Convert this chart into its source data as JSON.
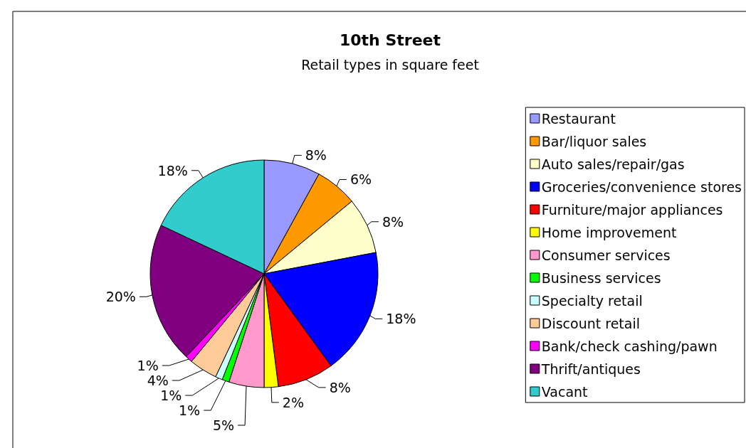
{
  "chart_data": {
    "type": "pie",
    "title": "10th Street",
    "subtitle": "Retail types in square feet",
    "categories": [
      "Restaurant",
      "Bar/liquor sales",
      "Auto sales/repair/gas",
      "Groceries/convenience stores",
      "Furniture/major appliances",
      "Home improvement",
      "Consumer services",
      "Business services",
      "Specialty retail",
      "Discount retail",
      "Bank/check cashing/pawn",
      "Thrift/antiques",
      "Vacant"
    ],
    "values": [
      8,
      6,
      8,
      18,
      8,
      2,
      5,
      1,
      1,
      4,
      1,
      20,
      18
    ],
    "value_labels": [
      "8%",
      "6%",
      "8%",
      "18%",
      "8%",
      "2%",
      "5%",
      "1%",
      "1%",
      "4%",
      "1%",
      "20%",
      "18%"
    ],
    "colors": [
      "#9999ff",
      "#ff9900",
      "#ffffcc",
      "#0000ff",
      "#ff0000",
      "#ffff00",
      "#ff99cc",
      "#00ff00",
      "#ccffff",
      "#ffcc99",
      "#ff00ff",
      "#800080",
      "#33cccc"
    ],
    "legend": "right"
  }
}
